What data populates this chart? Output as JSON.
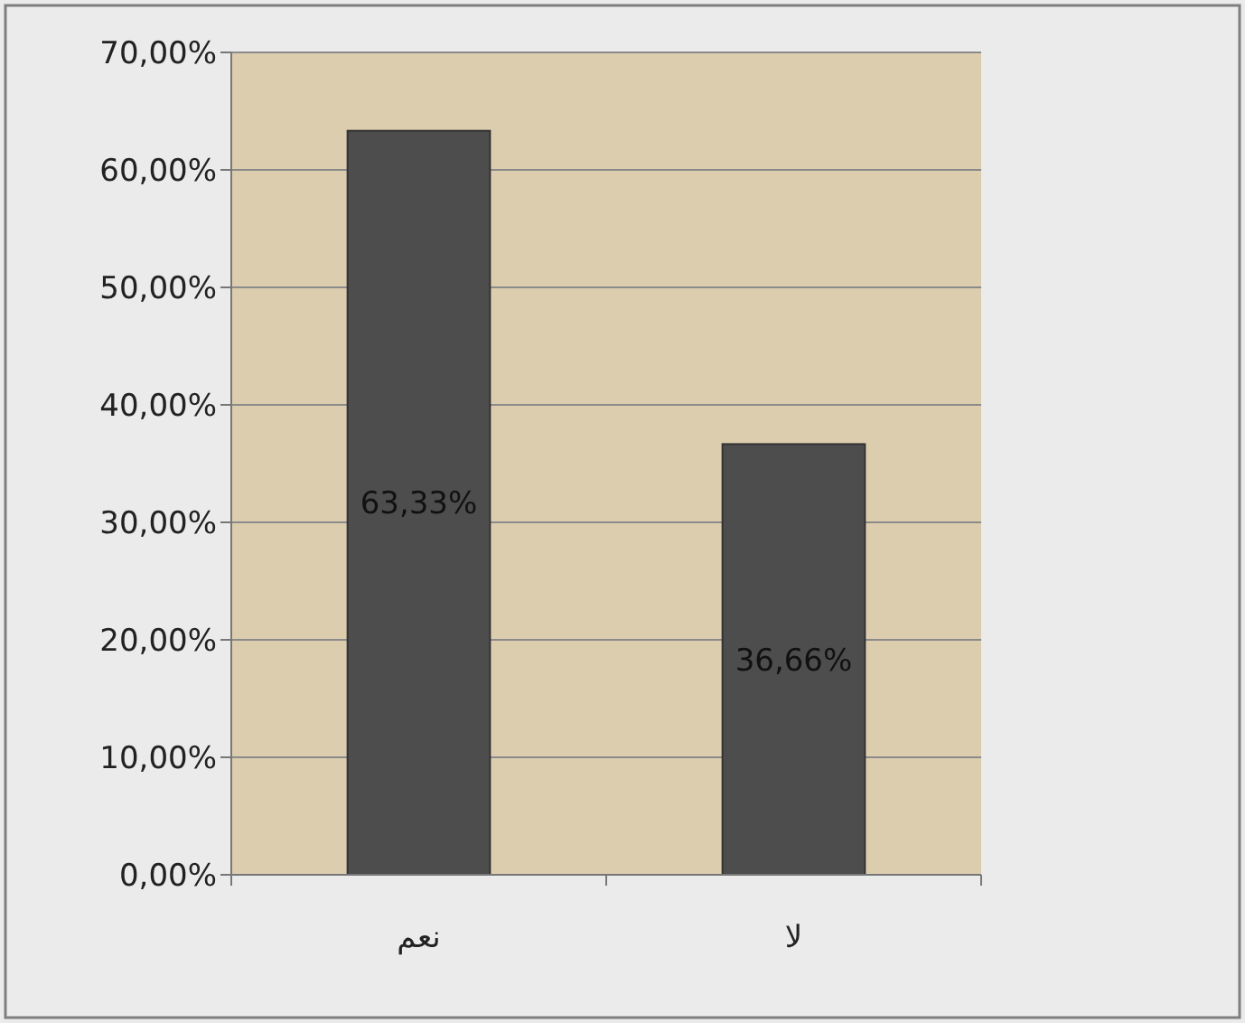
{
  "chart_data": {
    "type": "bar",
    "categories": [
      "نعم",
      "لا"
    ],
    "series": [
      {
        "color": "#4d4d4d",
        "values": [
          63.33,
          36.66
        ]
      }
    ],
    "value_labels": [
      "63,33%",
      "36,66%"
    ],
    "ylim": [
      0,
      70
    ],
    "yticks": [
      {
        "value": 0,
        "label": "0,00%"
      },
      {
        "value": 10,
        "label": "10,00%"
      },
      {
        "value": 20,
        "label": "20,00%"
      },
      {
        "value": 30,
        "label": "30,00%"
      },
      {
        "value": 40,
        "label": "40,00%"
      },
      {
        "value": 50,
        "label": "50,00%"
      },
      {
        "value": 60,
        "label": "60,00%"
      },
      {
        "value": 70,
        "label": "70,00%"
      }
    ],
    "grid": "y"
  }
}
